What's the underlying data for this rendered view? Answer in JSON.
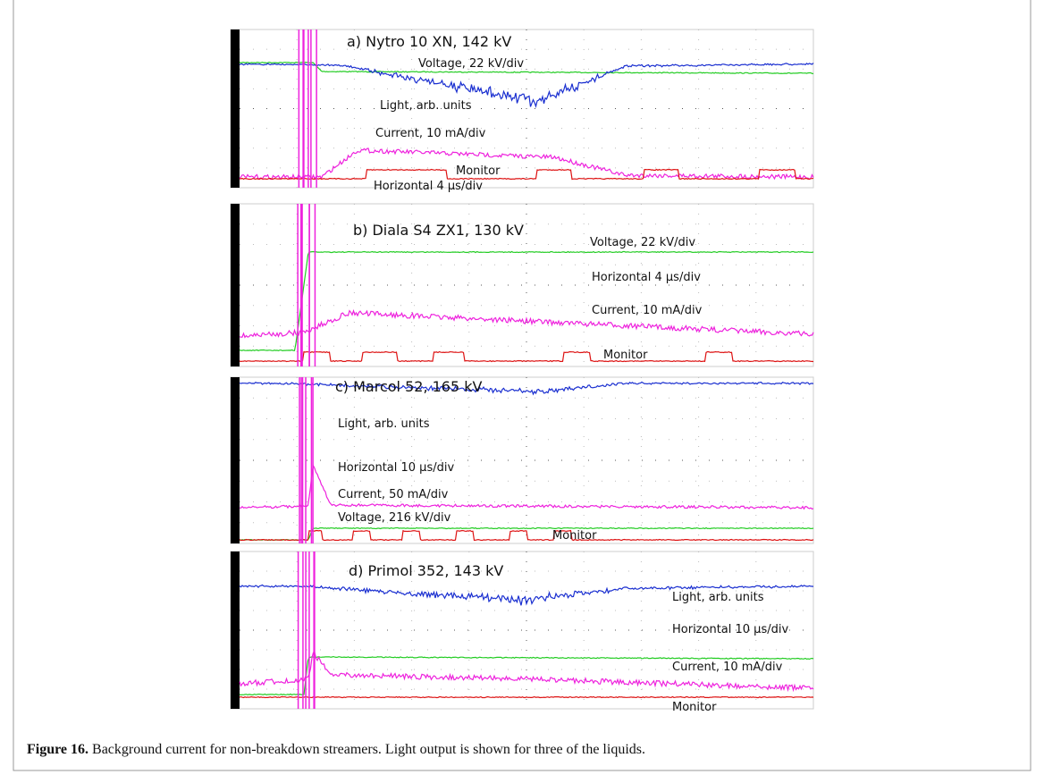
{
  "figure": {
    "panels": [
      {
        "title": "a) Nytro 10 XN, 142 kV",
        "labels": [
          "Voltage, 22 kV/div",
          "Light, arb. units",
          "Current, 10 mA/div",
          "Monitor",
          "Horizontal 4 μs/div"
        ]
      },
      {
        "title": "b) Diala S4 ZX1, 130 kV",
        "labels": [
          "Voltage, 22 kV/div",
          "Horizontal 4 μs/div",
          "Current, 10 mA/div",
          "Monitor"
        ]
      },
      {
        "title": "c) Marcol 52, 165 kV",
        "labels": [
          "Light, arb. units",
          "Horizontal 10 μs/div",
          "Current, 50 mA/div",
          "Voltage, 216 kV/div",
          "Monitor"
        ]
      },
      {
        "title": "d) Primol 352, 143 kV",
        "labels": [
          "Light, arb. units",
          "Horizontal 10 μs/div",
          "Current, 10 mA/div",
          "Monitor"
        ]
      }
    ],
    "caption": {
      "label": "Figure 16.",
      "text": "Background current for non-breakdown streamers. Light output is shown for three of the liquids."
    }
  }
}
